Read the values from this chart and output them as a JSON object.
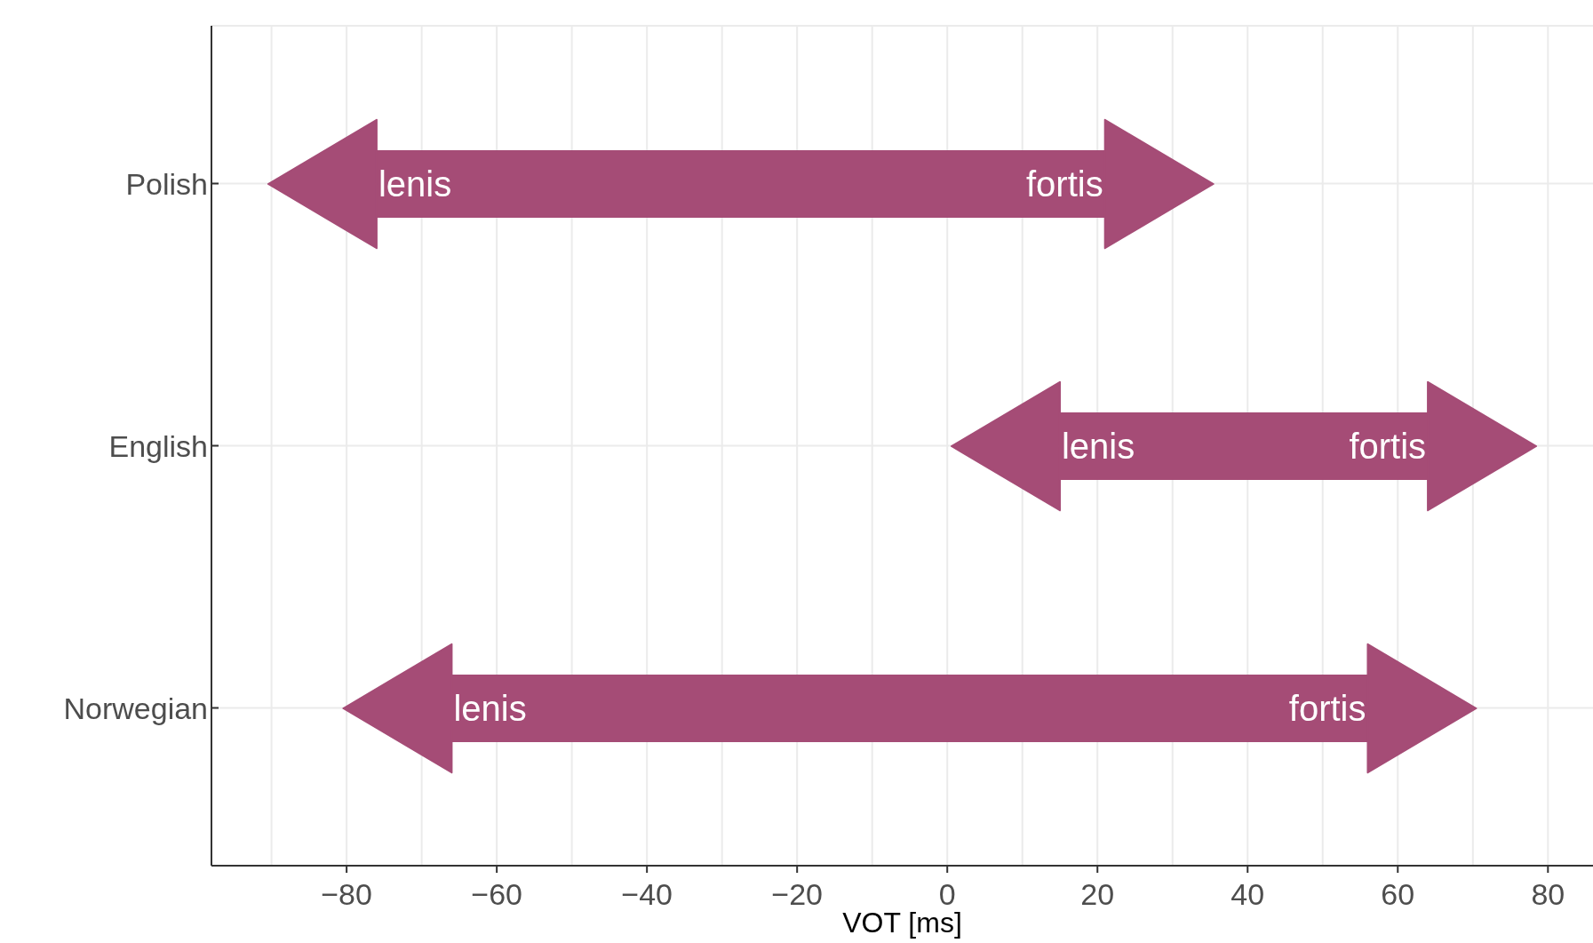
{
  "chart_data": {
    "type": "bar",
    "orientation": "horizontal",
    "xlabel": "VOT [ms]",
    "categories": [
      "Polish",
      "English",
      "Norwegian"
    ],
    "base": [
      -76,
      15,
      -66
    ],
    "values": [
      97,
      49,
      122
    ],
    "color": "#a54c76",
    "xlim": [
      -98,
      86
    ],
    "xticks": [
      {
        "value": -90,
        "label": null
      },
      -80,
      {
        "value": -70,
        "label": null
      },
      -60,
      {
        "value": -50,
        "label": null
      },
      -40,
      {
        "value": -30,
        "label": null
      },
      -20,
      {
        "value": -10,
        "label": null
      },
      0,
      {
        "value": 10,
        "label": null
      },
      20,
      {
        "value": 30,
        "label": null
      },
      40,
      {
        "value": 50,
        "label": null
      },
      60,
      {
        "value": 70,
        "label": null
      },
      80
    ],
    "grid": true,
    "annotations": [
      {
        "text": "lenis",
        "x": -76,
        "y": "Polish"
      },
      {
        "text": "fortis",
        "x": 21,
        "y": "Polish"
      },
      {
        "text": "lenis",
        "x": 15,
        "y": "English"
      },
      {
        "text": "fortis",
        "x": 64,
        "y": "English"
      },
      {
        "text": "lenis",
        "x": -66,
        "y": "Norwegian"
      },
      {
        "text": "fortis",
        "x": 56,
        "y": "Norwegian"
      }
    ]
  }
}
